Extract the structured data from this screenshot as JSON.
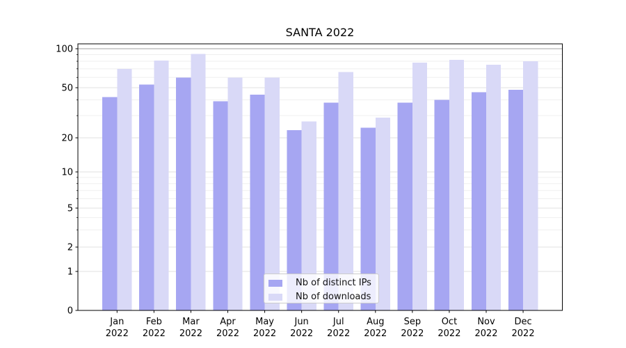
{
  "figure": {
    "background": "#ffffff"
  },
  "chart_data": {
    "type": "bar",
    "title": "SANTA 2022",
    "categories": [
      "Jan",
      "Feb",
      "Mar",
      "Apr",
      "May",
      "Jun",
      "Jul",
      "Aug",
      "Sep",
      "Oct",
      "Nov",
      "Dec"
    ],
    "year_label": "2022",
    "series": [
      {
        "name": "Nb of distinct IPs",
        "color": "#a6a6f2",
        "values": [
          42,
          53,
          60,
          39,
          44,
          23,
          38,
          24,
          38,
          40,
          46,
          48
        ]
      },
      {
        "name": "Nb of downloads",
        "color": "#d9d9f7",
        "values": [
          70,
          81,
          91,
          60,
          60,
          27,
          66,
          29,
          78,
          82,
          75,
          80
        ]
      }
    ],
    "xlabel": "",
    "ylabel": "",
    "yscale": "symlog (linear 0-1, logarithmic above 1)",
    "ylim": [
      0,
      110
    ],
    "yticks": [
      0,
      1,
      2,
      5,
      10,
      20,
      50,
      100
    ],
    "ytick_labels": [
      "0",
      "1",
      "2",
      "5",
      "10",
      "20",
      "50",
      "100"
    ],
    "minor_gridlines": [
      3,
      4,
      6,
      7,
      8,
      9,
      30,
      40,
      60,
      70,
      80,
      90
    ],
    "grid": "horizontal, major and minor",
    "legend_position": "bottom-center inside plot",
    "colors": {
      "axis": "#000000",
      "major_grid": "#e0e0e0",
      "minor_grid": "#efefef",
      "hundred_line": "#b3b3b3",
      "tick_label": "#000000"
    }
  }
}
